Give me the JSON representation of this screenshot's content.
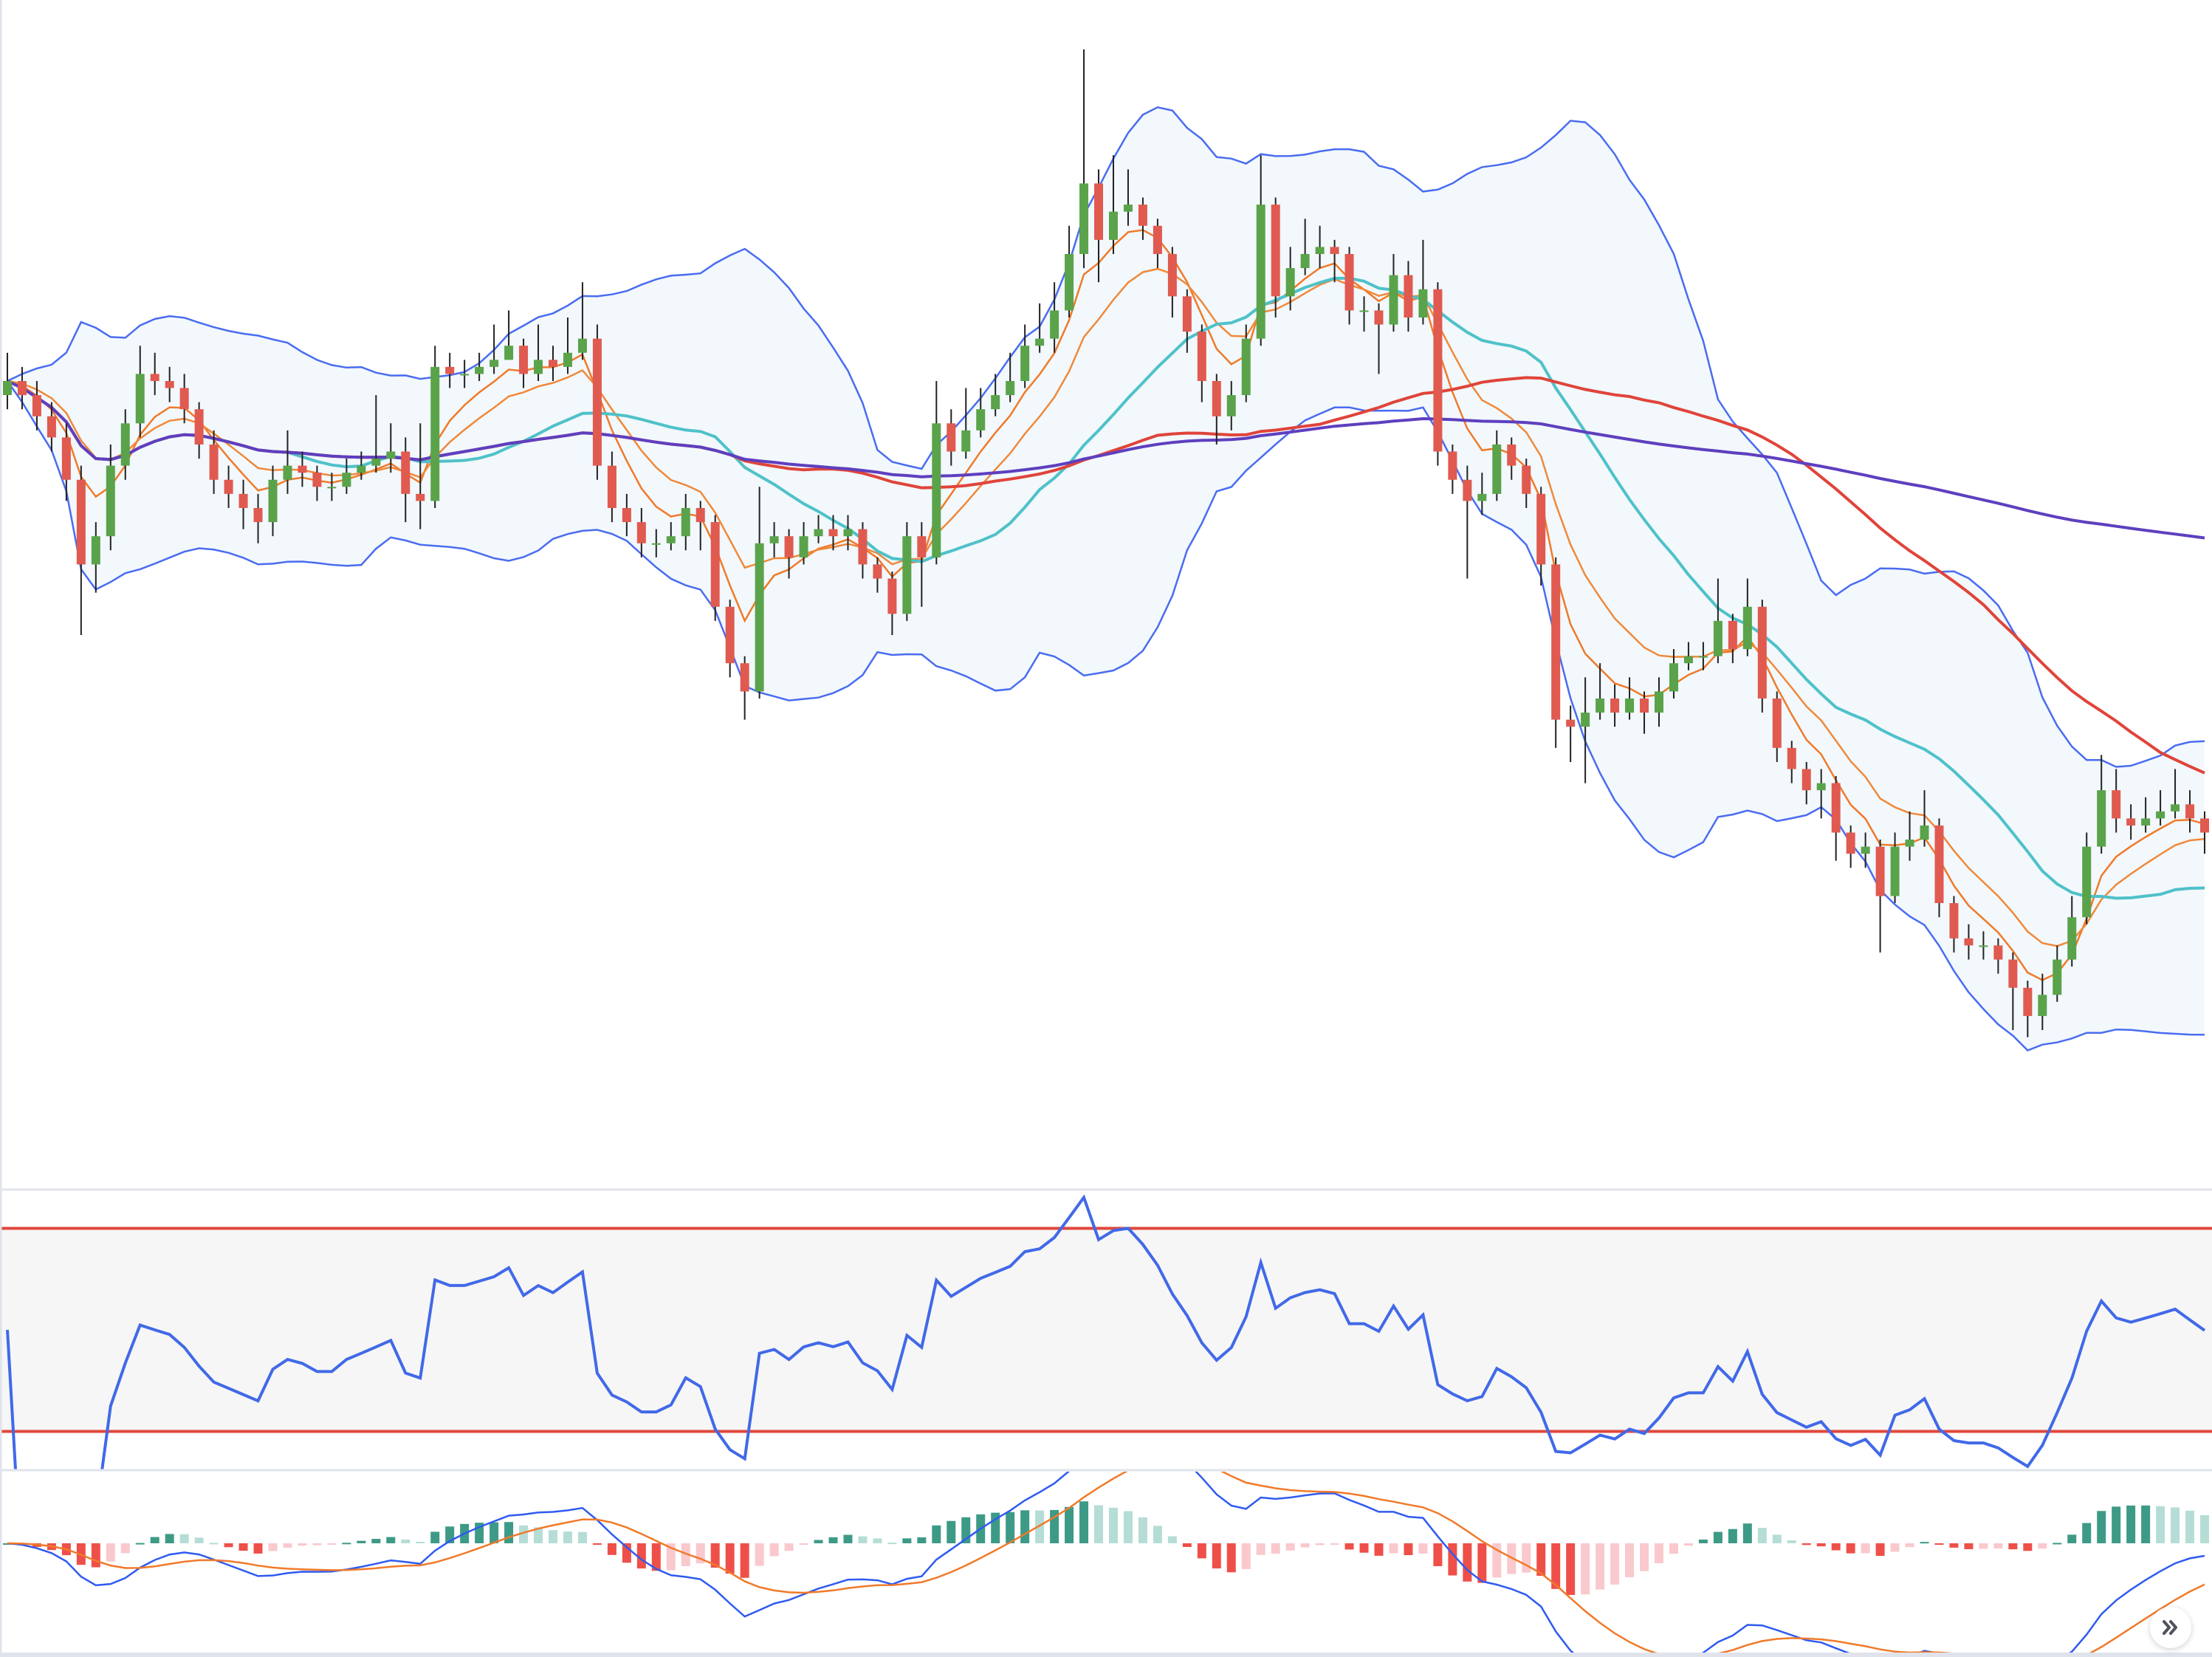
{
  "chart_data": {
    "type": "candlestick",
    "open": [
      72.0,
      73.0,
      72.0,
      70.5,
      69.0,
      66.0,
      60.0,
      62.0,
      67.0,
      70.0,
      73.5,
      73.0,
      72.5,
      71.0,
      68.5,
      66.0,
      65.0,
      64.0,
      63.0,
      66.0,
      67.0,
      66.5,
      65.5,
      65.5,
      66.5,
      67.0,
      67.5,
      68.0,
      65.0,
      64.5,
      74.0,
      73.5,
      73.5,
      74.0,
      74.5,
      75.5,
      73.5,
      74.5,
      74.0,
      75.0,
      76.0,
      67.0,
      64.0,
      63.0,
      61.5,
      61.5,
      62.0,
      64.0,
      63.0,
      57.0,
      53.0,
      51.0,
      61.5,
      62.0,
      60.5,
      62.0,
      62.5,
      62.0,
      62.5,
      60.0,
      59.0,
      56.5,
      62.0,
      60.5,
      70.0,
      68.0,
      69.5,
      71.0,
      72.0,
      73.0,
      75.5,
      76.0,
      78.0,
      82.0,
      87.0,
      83.0,
      85.0,
      85.5,
      84.0,
      82.0,
      79.0,
      76.5,
      73.0,
      70.5,
      72.0,
      76.0,
      85.5,
      79.0,
      81.0,
      82.0,
      82.5,
      82.0,
      78.0,
      78.0,
      77.0,
      80.5,
      77.5,
      79.5,
      68.0,
      66.0,
      64.5,
      65.0,
      68.5,
      67.0,
      65.0,
      60.0,
      49.0,
      48.5,
      49.5,
      50.5,
      49.5,
      50.5,
      49.5,
      51.0,
      53.0,
      53.5,
      53.5,
      56.0,
      54.0,
      57.0,
      50.5,
      47.0,
      45.5,
      44.0,
      44.5,
      41.0,
      39.5,
      40.0,
      36.5,
      40.0,
      40.5,
      41.5,
      36.0,
      33.5,
      33.0,
      33.0,
      32.0,
      30.0,
      28.0,
      29.5,
      32.0,
      35.0,
      40.0,
      44.0,
      42.0,
      41.5,
      42.0,
      42.5,
      43.0,
      42.0
    ],
    "high": [
      75.0,
      74.0,
      73.0,
      71.5,
      70.0,
      67.0,
      63.0,
      68.5,
      71.0,
      75.5,
      75.0,
      74.0,
      73.5,
      71.5,
      69.5,
      67.0,
      66.0,
      65.0,
      67.0,
      69.5,
      68.0,
      67.0,
      66.5,
      67.5,
      68.0,
      72.0,
      70.0,
      69.0,
      70.0,
      75.5,
      75.0,
      74.5,
      75.0,
      77.0,
      78.0,
      76.0,
      77.0,
      75.5,
      77.5,
      80.0,
      77.0,
      68.0,
      65.0,
      64.0,
      62.5,
      63.0,
      65.0,
      64.5,
      63.5,
      57.5,
      53.5,
      65.5,
      63.0,
      62.5,
      63.0,
      63.5,
      63.5,
      63.5,
      63.0,
      60.5,
      59.5,
      63.0,
      63.0,
      73.0,
      71.0,
      72.5,
      72.5,
      73.5,
      75.0,
      77.0,
      78.5,
      80.0,
      84.0,
      96.5,
      88.0,
      89.0,
      88.0,
      86.0,
      84.5,
      82.5,
      79.5,
      77.0,
      73.5,
      73.0,
      77.0,
      89.0,
      86.0,
      82.5,
      84.5,
      84.0,
      83.0,
      82.5,
      79.0,
      78.5,
      82.0,
      81.5,
      83.0,
      80.0,
      68.5,
      67.0,
      66.5,
      69.5,
      69.0,
      67.5,
      65.5,
      60.5,
      50.0,
      52.0,
      53.0,
      51.5,
      52.0,
      51.0,
      52.0,
      54.0,
      54.5,
      54.5,
      59.0,
      56.5,
      59.0,
      57.5,
      51.0,
      47.5,
      46.0,
      45.5,
      45.0,
      41.5,
      41.0,
      40.5,
      41.0,
      42.5,
      44.0,
      42.0,
      36.5,
      34.5,
      34.0,
      33.5,
      32.5,
      30.5,
      31.0,
      33.0,
      36.5,
      41.0,
      46.5,
      45.5,
      43.0,
      43.5,
      44.0,
      45.5,
      44.0,
      42.5
    ],
    "low": [
      71.0,
      71.0,
      69.5,
      68.0,
      64.5,
      55.0,
      58.0,
      61.0,
      66.0,
      69.0,
      72.0,
      71.5,
      70.0,
      67.5,
      65.0,
      64.0,
      62.5,
      61.5,
      62.0,
      65.0,
      65.5,
      64.5,
      64.5,
      65.0,
      66.0,
      66.5,
      66.5,
      63.0,
      62.5,
      64.0,
      72.5,
      72.5,
      73.0,
      73.5,
      74.5,
      72.5,
      73.0,
      73.0,
      73.5,
      74.5,
      66.0,
      63.0,
      62.0,
      60.5,
      60.5,
      61.0,
      61.0,
      61.0,
      56.0,
      52.0,
      49.0,
      50.5,
      60.5,
      59.0,
      60.0,
      61.5,
      61.0,
      61.0,
      59.0,
      58.0,
      55.0,
      56.0,
      57.0,
      60.0,
      67.0,
      67.5,
      69.0,
      70.5,
      71.5,
      72.5,
      75.0,
      75.0,
      77.5,
      81.0,
      80.0,
      82.0,
      84.0,
      83.0,
      81.0,
      77.5,
      75.0,
      71.5,
      68.5,
      69.5,
      71.5,
      75.5,
      77.5,
      78.0,
      80.5,
      81.0,
      80.0,
      77.0,
      76.5,
      73.5,
      76.5,
      76.5,
      77.0,
      67.0,
      65.0,
      59.0,
      63.5,
      64.5,
      66.0,
      64.0,
      58.5,
      47.0,
      46.0,
      44.5,
      49.0,
      48.5,
      49.0,
      48.0,
      48.5,
      50.5,
      52.5,
      52.5,
      53.0,
      53.0,
      53.5,
      49.5,
      46.0,
      44.5,
      43.0,
      42.0,
      39.0,
      38.5,
      38.5,
      32.5,
      36.0,
      39.0,
      40.0,
      35.0,
      32.5,
      32.0,
      32.0,
      31.0,
      27.0,
      26.5,
      27.0,
      29.0,
      31.5,
      34.5,
      39.5,
      41.0,
      40.5,
      41.0,
      41.5,
      42.0,
      41.0,
      39.5
    ],
    "close": [
      73.0,
      72.0,
      70.5,
      69.0,
      66.0,
      60.0,
      62.0,
      67.0,
      70.0,
      73.5,
      73.0,
      72.5,
      71.0,
      68.5,
      66.0,
      65.0,
      64.0,
      63.0,
      66.0,
      67.0,
      66.5,
      65.5,
      65.5,
      66.5,
      67.0,
      67.5,
      68.0,
      65.0,
      64.5,
      74.0,
      73.5,
      73.5,
      74.0,
      74.5,
      75.5,
      73.5,
      74.5,
      74.0,
      75.0,
      76.0,
      67.0,
      64.0,
      63.0,
      61.5,
      61.5,
      62.0,
      64.0,
      63.0,
      57.0,
      53.0,
      51.0,
      61.5,
      62.0,
      60.5,
      62.0,
      62.5,
      62.0,
      62.5,
      60.0,
      59.0,
      56.5,
      62.0,
      60.5,
      70.0,
      68.0,
      69.5,
      71.0,
      72.0,
      73.0,
      75.5,
      76.0,
      78.0,
      82.0,
      87.0,
      83.0,
      85.0,
      85.5,
      84.0,
      82.0,
      79.0,
      76.5,
      73.0,
      70.5,
      72.0,
      76.0,
      85.5,
      79.0,
      81.0,
      82.0,
      82.5,
      82.0,
      78.0,
      78.0,
      77.0,
      80.5,
      77.5,
      79.5,
      68.0,
      66.0,
      64.5,
      65.0,
      68.5,
      67.0,
      65.0,
      60.0,
      49.0,
      48.5,
      49.5,
      50.5,
      49.5,
      50.5,
      49.5,
      51.0,
      53.0,
      53.5,
      53.5,
      56.0,
      54.0,
      57.0,
      50.5,
      47.0,
      45.5,
      44.0,
      44.5,
      41.0,
      39.5,
      40.0,
      36.5,
      40.0,
      40.5,
      41.5,
      36.0,
      33.5,
      33.0,
      33.0,
      32.0,
      30.0,
      28.0,
      29.5,
      32.0,
      35.0,
      40.0,
      44.0,
      42.0,
      41.5,
      42.0,
      42.5,
      43.0,
      42.0,
      41.0
    ],
    "overlays": {
      "bollinger": {
        "period": 20,
        "stddev": 2
      },
      "moving_averages": [
        {
          "kind": "ema",
          "period": 5,
          "color": "#f07a2a"
        },
        {
          "kind": "ema",
          "period": 10,
          "color": "#f0893a"
        },
        {
          "kind": "sma",
          "period": 20,
          "color": "#4fc1c9"
        },
        {
          "kind": "sma",
          "period": 50,
          "color": "#e0443a"
        },
        {
          "kind": "sma",
          "period": 200,
          "color": "#5e3fbf"
        }
      ]
    },
    "rsi": {
      "period": 14,
      "upper": 70,
      "lower": 30,
      "ylim": [
        22.5,
        77.5
      ]
    },
    "macd": {
      "fast": 12,
      "slow": 26,
      "signal": 9
    },
    "grid": false,
    "legend": "none"
  },
  "colors": {
    "up": "#5aa34a",
    "down": "#e05a50",
    "wick": "#222222",
    "bb_line": "#4a6cf0",
    "bb_fill": "#f2f8fc",
    "rsi_line": "#4169e8",
    "rsi_band": "#e0483c",
    "rsi_fill": "#f6f6f6",
    "macd_line": "#2f5bf0",
    "signal_line": "#f07a2a",
    "hist_up_strong": "#3d9a86",
    "hist_up_weak": "#b5ddd6",
    "hist_down_strong": "#ee5049",
    "hist_down_weak": "#f9c9cd",
    "pane_border": "#e0e3eb"
  },
  "controls": {
    "scroll_button_icon": "double-chevron-right-icon"
  }
}
